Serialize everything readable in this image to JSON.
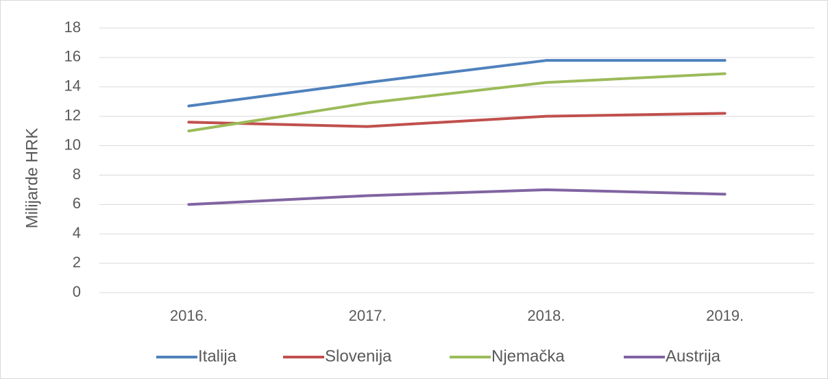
{
  "chart_data": {
    "type": "line",
    "categories": [
      "2016.",
      "2017.",
      "2018.",
      "2019."
    ],
    "y_label": "Milijarde HRK",
    "series": [
      {
        "name": "Italija",
        "color": "#4f81bd",
        "values": [
          12.7,
          14.3,
          15.8,
          15.8
        ]
      },
      {
        "name": "Slovenija",
        "color": "#c0504d",
        "values": [
          11.6,
          11.3,
          12.0,
          12.2
        ]
      },
      {
        "name": "Njemačka",
        "color": "#9bbb59",
        "values": [
          11.0,
          12.9,
          14.3,
          14.9
        ]
      },
      {
        "name": "Austrija",
        "color": "#8064a2",
        "values": [
          6.0,
          6.6,
          7.0,
          6.7
        ]
      }
    ],
    "ylim": [
      0,
      18
    ],
    "yticks": [
      0,
      2,
      4,
      6,
      8,
      10,
      12,
      14,
      16,
      18
    ],
    "grid": true,
    "legend": "bottom"
  }
}
